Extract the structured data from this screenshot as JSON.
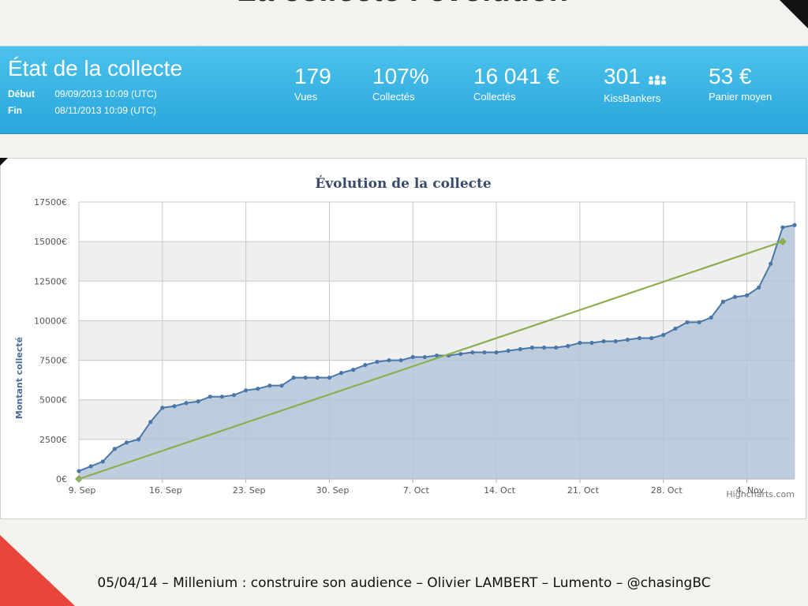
{
  "slide": {
    "title": "La collecte : évolution",
    "footer": "05/04/14 – Millenium : construire son audience – Olivier LAMBERT – Lumento – @chasingBC"
  },
  "stats_panel": {
    "title": "État de la collecte",
    "debut_label": "Début",
    "debut_value": "09/09/2013 10:09 (UTC)",
    "fin_label": "Fin",
    "fin_value": "08/11/2013 10:09 (UTC)",
    "stats": [
      {
        "value": "179",
        "caption": "Vues"
      },
      {
        "value": "107%",
        "caption": "Collectés"
      },
      {
        "value": "16 041 €",
        "caption": "Collectés"
      },
      {
        "value": "301",
        "caption": "KissBankers",
        "icon": "people-icon"
      },
      {
        "value": "53 €",
        "caption": "Panier moyen"
      }
    ],
    "colors": {
      "panel": "#2aa8de",
      "text": "#ffffff"
    }
  },
  "chart_data": {
    "type": "area",
    "title": "Évolution de la collecte",
    "ylabel": "Montant collecté",
    "xlabel": "",
    "credit": "Highcharts.com",
    "ylim": [
      0,
      17500
    ],
    "xlim": [
      0,
      60
    ],
    "grid": true,
    "x_tick_days": [
      0,
      7,
      14,
      21,
      28,
      35,
      42,
      49,
      56
    ],
    "x_tick_labels": [
      "9. Sep",
      "16. Sep",
      "23. Sep",
      "30. Sep",
      "7. Oct",
      "14. Oct",
      "21. Oct",
      "28. Oct",
      "4. Nov"
    ],
    "y_ticks": [
      0,
      2500,
      5000,
      7500,
      10000,
      12500,
      15000,
      17500
    ],
    "y_tick_labels": [
      "0€",
      "2500€",
      "5000€",
      "7500€",
      "10000€",
      "12500€",
      "15000€",
      "17500€"
    ],
    "colors": {
      "area_line": "#4a77aa",
      "area_fill": "#b3c5d9",
      "target_line": "#89b04f",
      "title": "#3a4a6b"
    },
    "series": [
      {
        "x": [
          0,
          1,
          2,
          3,
          4,
          5,
          6,
          7,
          8,
          9,
          10,
          11,
          12,
          13,
          14,
          15,
          16,
          17,
          18,
          19,
          20,
          21,
          22,
          23,
          24,
          25,
          26,
          27,
          28,
          29,
          30,
          31,
          32,
          33,
          34,
          35,
          36,
          37,
          38,
          39,
          40,
          41,
          42,
          43,
          44,
          45,
          46,
          47,
          48,
          49,
          50,
          51,
          52,
          53,
          54,
          55,
          56,
          57,
          58,
          59,
          60
        ],
        "y": [
          500,
          800,
          1100,
          1900,
          2300,
          2500,
          3600,
          4500,
          4600,
          4800,
          4900,
          5200,
          5200,
          5300,
          5600,
          5700,
          5900,
          5900,
          6400,
          6400,
          6400,
          6400,
          6700,
          6900,
          7200,
          7400,
          7500,
          7500,
          7700,
          7700,
          7800,
          7800,
          7900,
          8000,
          8000,
          8000,
          8100,
          8200,
          8300,
          8300,
          8300,
          8400,
          8600,
          8600,
          8700,
          8700,
          8800,
          8900,
          8900,
          9100,
          9500,
          9900,
          9900,
          10200,
          11200,
          11500,
          11600,
          12100,
          13600,
          15900,
          16041
        ]
      },
      {
        "x": [
          0,
          59
        ],
        "y": [
          0,
          15000
        ]
      }
    ]
  }
}
